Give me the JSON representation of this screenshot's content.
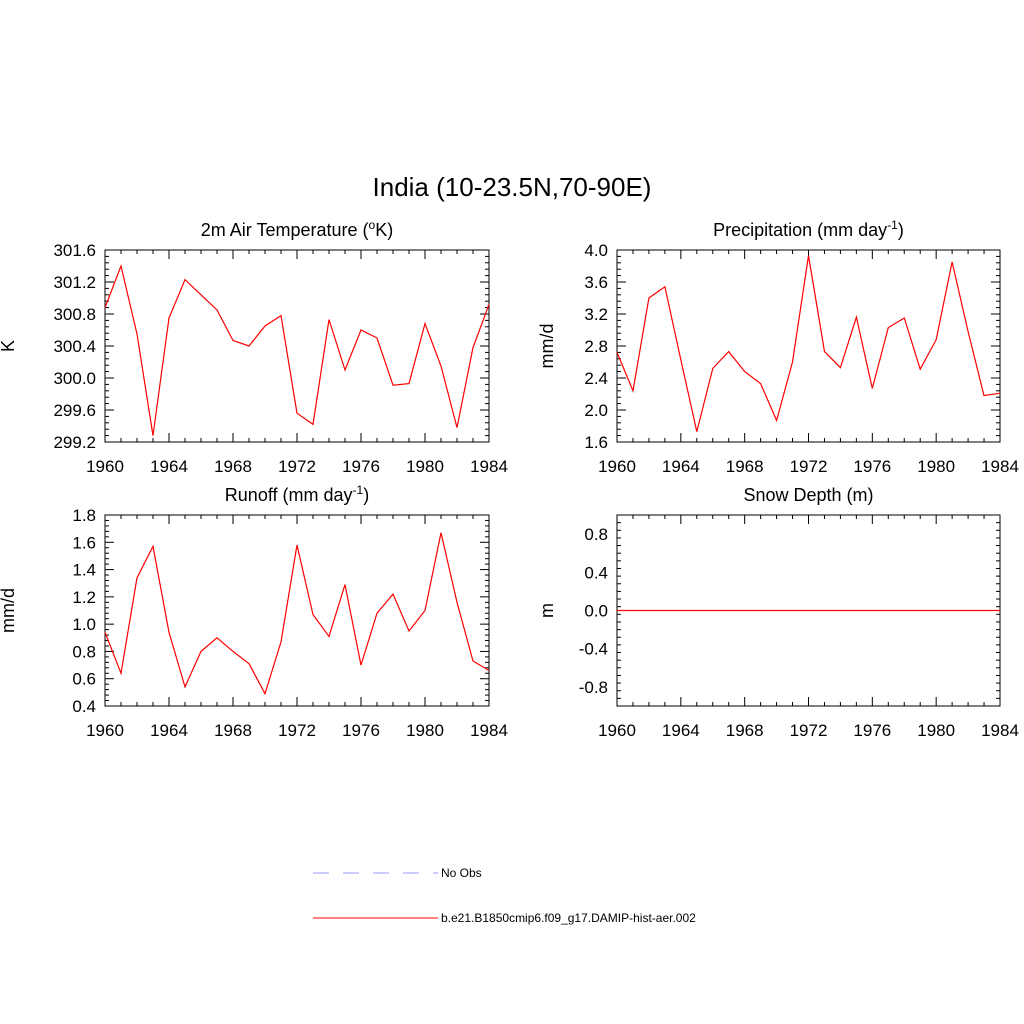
{
  "figure": {
    "title": "India (10-23.5N,70-90E)"
  },
  "colors": {
    "model": "#ff0000",
    "obs": "#9999ff",
    "axis": "#000000"
  },
  "chart_data": [
    {
      "type": "line",
      "title": "2m Air Temperature (°K)",
      "title_parts": [
        "2m Air Temperature (",
        "o",
        "K)"
      ],
      "xlabel": "",
      "ylabel": "K",
      "xlim": [
        1960,
        1984
      ],
      "ylim": [
        299.2,
        301.6
      ],
      "x_ticks": [
        1960,
        1964,
        1968,
        1972,
        1976,
        1980,
        1984
      ],
      "y_ticks": [
        "299.2",
        "299.6",
        "300.0",
        "300.4",
        "300.8",
        "301.2",
        "301.6"
      ],
      "x": [
        1960,
        1961,
        1962,
        1963,
        1964,
        1965,
        1966,
        1967,
        1968,
        1969,
        1970,
        1971,
        1972,
        1973,
        1974,
        1975,
        1976,
        1977,
        1978,
        1979,
        1980,
        1981,
        1982,
        1983,
        1984
      ],
      "series": [
        {
          "name": "b.e21.B1850cmip6.f09_g17.DAMIP-hist-aer.002",
          "values": [
            300.88,
            301.4,
            300.55,
            299.28,
            300.75,
            301.23,
            301.04,
            300.85,
            300.47,
            300.4,
            300.65,
            300.78,
            299.56,
            299.42,
            300.73,
            300.1,
            300.6,
            300.5,
            299.91,
            299.93,
            300.68,
            300.15,
            299.38,
            300.38,
            300.92
          ]
        }
      ]
    },
    {
      "type": "line",
      "title": "Precipitation (mm day-1)",
      "title_parts": [
        "Precipitation (mm day",
        "-1",
        ")"
      ],
      "xlabel": "",
      "ylabel": "mm/d",
      "xlim": [
        1960,
        1984
      ],
      "ylim": [
        1.6,
        4.0
      ],
      "x_ticks": [
        1960,
        1964,
        1968,
        1972,
        1976,
        1980,
        1984
      ],
      "y_ticks": [
        "1.6",
        "2.0",
        "2.4",
        "2.8",
        "3.2",
        "3.6",
        "4.0"
      ],
      "x": [
        1960,
        1961,
        1962,
        1963,
        1964,
        1965,
        1966,
        1967,
        1968,
        1969,
        1970,
        1971,
        1972,
        1973,
        1974,
        1975,
        1976,
        1977,
        1978,
        1979,
        1980,
        1981,
        1982,
        1983,
        1984
      ],
      "series": [
        {
          "name": "b.e21.B1850cmip6.f09_g17.DAMIP-hist-aer.002",
          "values": [
            2.72,
            2.24,
            3.4,
            3.54,
            2.63,
            1.73,
            2.52,
            2.73,
            2.48,
            2.33,
            1.87,
            2.6,
            3.93,
            2.73,
            2.53,
            3.16,
            2.27,
            3.03,
            3.15,
            2.51,
            2.88,
            3.85,
            2.98,
            2.18,
            2.21
          ]
        }
      ]
    },
    {
      "type": "line",
      "title": "Runoff (mm day-1)",
      "title_parts": [
        "Runoff (mm day",
        "-1",
        ")"
      ],
      "xlabel": "",
      "ylabel": "mm/d",
      "xlim": [
        1960,
        1984
      ],
      "ylim": [
        0.4,
        1.8
      ],
      "x_ticks": [
        1960,
        1964,
        1968,
        1972,
        1976,
        1980,
        1984
      ],
      "y_ticks": [
        "0.4",
        "0.6",
        "0.8",
        "1.0",
        "1.2",
        "1.4",
        "1.6",
        "1.8"
      ],
      "x": [
        1960,
        1961,
        1962,
        1963,
        1964,
        1965,
        1966,
        1967,
        1968,
        1969,
        1970,
        1971,
        1972,
        1973,
        1974,
        1975,
        1976,
        1977,
        1978,
        1979,
        1980,
        1981,
        1982,
        1983,
        1984
      ],
      "series": [
        {
          "name": "b.e21.B1850cmip6.f09_g17.DAMIP-hist-aer.002",
          "values": [
            0.94,
            0.64,
            1.34,
            1.57,
            0.94,
            0.54,
            0.8,
            0.9,
            0.8,
            0.71,
            0.49,
            0.87,
            1.58,
            1.07,
            0.91,
            1.29,
            0.7,
            1.08,
            1.22,
            0.95,
            1.1,
            1.67,
            1.16,
            0.73,
            0.66
          ]
        }
      ]
    },
    {
      "type": "line",
      "title": "Snow Depth (m)",
      "title_parts": [
        "Snow Depth (m)",
        "",
        ""
      ],
      "xlabel": "",
      "ylabel": "m",
      "xlim": [
        1960,
        1984
      ],
      "ylim": [
        -1.0,
        1.0
      ],
      "x_ticks": [
        1960,
        1964,
        1968,
        1972,
        1976,
        1980,
        1984
      ],
      "y_ticks": [
        "-0.8",
        "-0.4",
        "0.0",
        "0.4",
        "0.8"
      ],
      "y_tick_values": [
        -0.8,
        -0.4,
        0.0,
        0.4,
        0.8
      ],
      "x": [
        1960,
        1961,
        1962,
        1963,
        1964,
        1965,
        1966,
        1967,
        1968,
        1969,
        1970,
        1971,
        1972,
        1973,
        1974,
        1975,
        1976,
        1977,
        1978,
        1979,
        1980,
        1981,
        1982,
        1983,
        1984
      ],
      "series": [
        {
          "name": "b.e21.B1850cmip6.f09_g17.DAMIP-hist-aer.002",
          "values": [
            0,
            0,
            0,
            0,
            0,
            0,
            0,
            0,
            0,
            0,
            0,
            0,
            0,
            0,
            0,
            0,
            0,
            0,
            0,
            0,
            0,
            0,
            0,
            0,
            0
          ]
        }
      ]
    }
  ],
  "legend": {
    "items": [
      {
        "label": "No Obs",
        "style": "dashed",
        "color": "#9999ff"
      },
      {
        "label": "b.e21.B1850cmip6.f09_g17.DAMIP-hist-aer.002",
        "style": "solid",
        "color": "#ff0000"
      }
    ]
  }
}
